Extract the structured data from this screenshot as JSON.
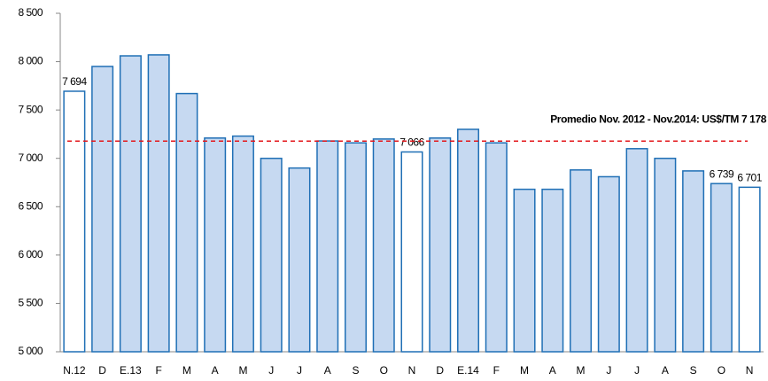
{
  "chart_data": {
    "type": "bar",
    "categories": [
      "N.12",
      "D",
      "E.13",
      "F",
      "M",
      "A",
      "M",
      "J",
      "J",
      "A",
      "S",
      "O",
      "N",
      "D",
      "E.14",
      "F",
      "M",
      "A",
      "M",
      "J",
      "J",
      "A",
      "S",
      "O",
      "N"
    ],
    "values": [
      7694,
      7950,
      8060,
      8070,
      7670,
      7210,
      7230,
      7000,
      6900,
      7180,
      7160,
      7200,
      7066,
      7210,
      7300,
      7160,
      6680,
      6680,
      6880,
      6810,
      7100,
      7000,
      6870,
      6739,
      6701
    ],
    "value_labels": [
      "7 694",
      null,
      null,
      null,
      null,
      null,
      null,
      null,
      null,
      null,
      null,
      null,
      "7 066",
      null,
      null,
      null,
      null,
      null,
      null,
      null,
      null,
      null,
      null,
      "6 739",
      "6 701"
    ],
    "colors": [
      "#ffffff",
      "#c6d9f1",
      "#c6d9f1",
      "#c6d9f1",
      "#c6d9f1",
      "#c6d9f1",
      "#c6d9f1",
      "#c6d9f1",
      "#c6d9f1",
      "#c6d9f1",
      "#c6d9f1",
      "#c6d9f1",
      "#ffffff",
      "#c6d9f1",
      "#c6d9f1",
      "#c6d9f1",
      "#c6d9f1",
      "#c6d9f1",
      "#c6d9f1",
      "#c6d9f1",
      "#c6d9f1",
      "#c6d9f1",
      "#c6d9f1",
      "#c6d9f1",
      "#ffffff"
    ],
    "edge_color": "#1f6fb5",
    "ylim": [
      5000,
      8500
    ],
    "yticks": [
      {
        "value": 5000,
        "label": "5 000"
      },
      {
        "value": 5500,
        "label": "5 500"
      },
      {
        "value": 6000,
        "label": "6 000"
      },
      {
        "value": 6500,
        "label": "6 500"
      },
      {
        "value": 7000,
        "label": "7 000"
      },
      {
        "value": 7500,
        "label": "7 500"
      },
      {
        "value": 8000,
        "label": "8 000"
      },
      {
        "value": 8500,
        "label": "8 500"
      }
    ],
    "grid": false,
    "reference_line": {
      "value": 7178,
      "label": "Promedio Nov. 2012 - Nov.2014: US$/TM 7 178",
      "color": "#e3171b"
    }
  }
}
